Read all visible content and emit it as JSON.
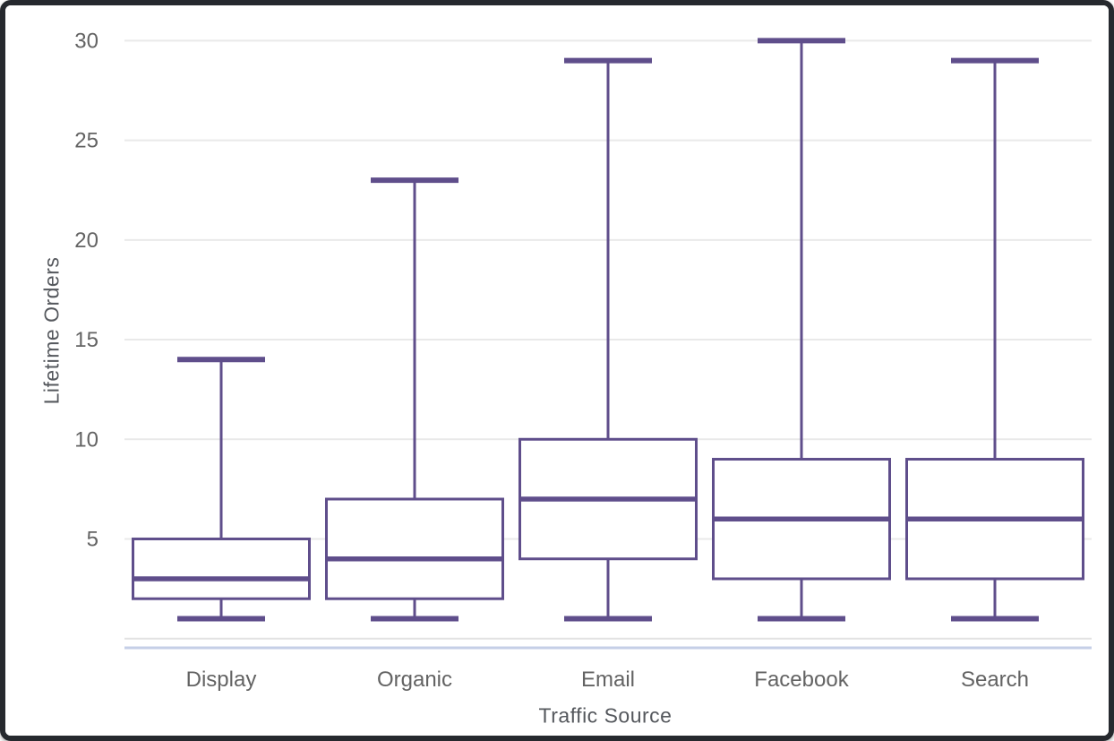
{
  "window": {
    "frame_color": "#26292e",
    "background": "#ffffff"
  },
  "chart_data": {
    "type": "boxplot",
    "title": "",
    "xlabel": "Traffic Source",
    "ylabel": "Lifetime Orders",
    "categories": [
      "Display",
      "Organic",
      "Email",
      "Facebook",
      "Search"
    ],
    "series": [
      {
        "name": "Display",
        "min": 1,
        "q1": 2,
        "median": 3,
        "q3": 5,
        "max": 14
      },
      {
        "name": "Organic",
        "min": 1,
        "q1": 2,
        "median": 4,
        "q3": 7,
        "max": 23
      },
      {
        "name": "Email",
        "min": 1,
        "q1": 4,
        "median": 7,
        "q3": 10,
        "max": 29
      },
      {
        "name": "Facebook",
        "min": 1,
        "q1": 3,
        "median": 6,
        "q3": 9,
        "max": 30
      },
      {
        "name": "Search",
        "min": 1,
        "q1": 3,
        "median": 6,
        "q3": 9,
        "max": 29
      }
    ],
    "y_ticks": [
      5,
      10,
      15,
      20,
      25,
      30
    ],
    "ylim": [
      0,
      31
    ],
    "grid": "horizontal",
    "legend": "none",
    "colors": {
      "box_stroke": "#5f4e8b",
      "box_fill": "#ffffff",
      "grid_line": "#e9e9e9",
      "zero_line": "#e2e2e2",
      "axis_line": "#c5cfe7",
      "tick_text": "#636363",
      "title_text": "#55585d"
    }
  }
}
